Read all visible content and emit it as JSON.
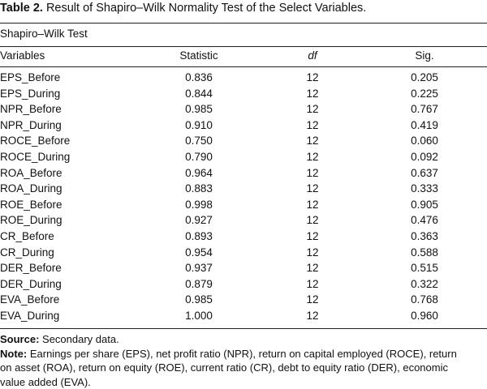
{
  "caption": {
    "label": "Table 2.",
    "text": "Result of Shapiro–Wilk Normality Test of the Select Variables."
  },
  "table": {
    "group_header": "Shapiro–Wilk Test",
    "columns": {
      "variables": "Variables",
      "statistic": "Statistic",
      "df": "df",
      "sig": "Sig."
    },
    "rows": [
      {
        "variable": "EPS_Before",
        "statistic": "0.836",
        "df": "12",
        "sig": "0.205"
      },
      {
        "variable": "EPS_During",
        "statistic": "0.844",
        "df": "12",
        "sig": "0.225"
      },
      {
        "variable": "NPR_Before",
        "statistic": "0.985",
        "df": "12",
        "sig": "0.767"
      },
      {
        "variable": "NPR_During",
        "statistic": "0.910",
        "df": "12",
        "sig": "0.419"
      },
      {
        "variable": "ROCE_Before",
        "statistic": "0.750",
        "df": "12",
        "sig": "0.060"
      },
      {
        "variable": "ROCE_During",
        "statistic": "0.790",
        "df": "12",
        "sig": "0.092"
      },
      {
        "variable": "ROA_Before",
        "statistic": "0.964",
        "df": "12",
        "sig": "0.637"
      },
      {
        "variable": "ROA_During",
        "statistic": "0.883",
        "df": "12",
        "sig": "0.333"
      },
      {
        "variable": "ROE_Before",
        "statistic": "0.998",
        "df": "12",
        "sig": "0.905"
      },
      {
        "variable": "ROE_During",
        "statistic": "0.927",
        "df": "12",
        "sig": "0.476"
      },
      {
        "variable": "CR_Before",
        "statistic": "0.893",
        "df": "12",
        "sig": "0.363"
      },
      {
        "variable": "CR_During",
        "statistic": "0.954",
        "df": "12",
        "sig": "0.588"
      },
      {
        "variable": "DER_Before",
        "statistic": "0.937",
        "df": "12",
        "sig": "0.515"
      },
      {
        "variable": "DER_During",
        "statistic": "0.879",
        "df": "12",
        "sig": "0.322"
      },
      {
        "variable": "EVA_Before",
        "statistic": "0.985",
        "df": "12",
        "sig": "0.768"
      },
      {
        "variable": "EVA_During",
        "statistic": "1.000",
        "df": "12",
        "sig": "0.960"
      }
    ]
  },
  "footnotes": {
    "source_label": "Source:",
    "source_text": "Secondary data.",
    "note_label": "Note:",
    "note_line1": "Earnings per share (EPS), net profit ratio (NPR), return on capital employed (ROCE), return",
    "note_line2": "on asset (ROA), return on equity (ROE), current ratio (CR), debt to equity ratio (DER), economic",
    "note_line3": "value added (EVA)."
  }
}
